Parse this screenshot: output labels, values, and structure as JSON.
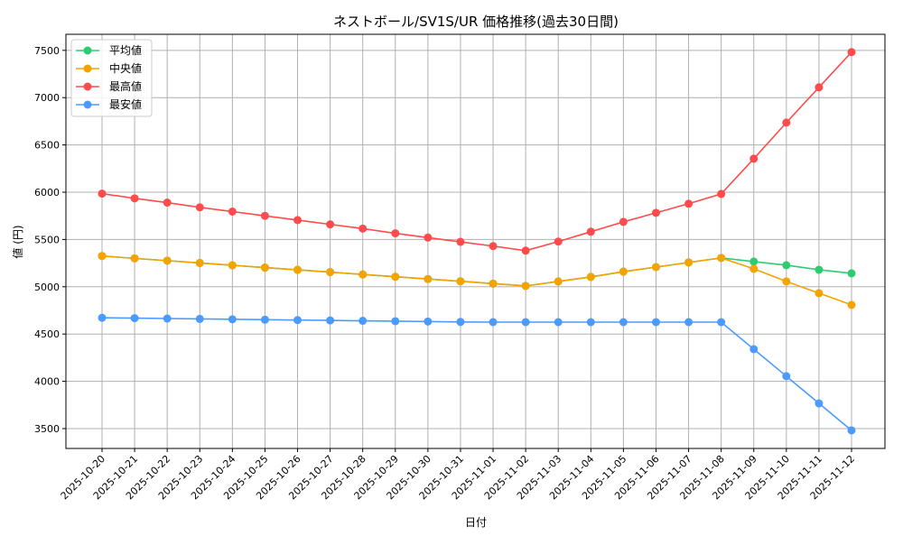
{
  "chart_data": {
    "type": "line",
    "title": "ネストボール/SV1S/UR 価格推移(過去30日間)",
    "xlabel": "日付",
    "ylabel": "値 (円)",
    "ylim": [
      3290,
      7670
    ],
    "yticks": [
      3500,
      4000,
      4500,
      5000,
      5500,
      6000,
      6500,
      7000,
      7500
    ],
    "grid": true,
    "legend_position": "top-left",
    "x": [
      "2025-10-20",
      "2025-10-21",
      "2025-10-22",
      "2025-10-23",
      "2025-10-24",
      "2025-10-25",
      "2025-10-26",
      "2025-10-27",
      "2025-10-28",
      "2025-10-29",
      "2025-10-30",
      "2025-10-31",
      "2025-11-01",
      "2025-11-02",
      "2025-11-03",
      "2025-11-04",
      "2025-11-05",
      "2025-11-06",
      "2025-11-07",
      "2025-11-08",
      "2025-11-09",
      "2025-11-10",
      "2025-11-11",
      "2025-11-12"
    ],
    "series": [
      {
        "name": "平均値",
        "color": "#2ecc71",
        "values": [
          5325,
          5300,
          5276,
          5252,
          5227,
          5203,
          5179,
          5155,
          5130,
          5106,
          5082,
          5058,
          5033,
          5009,
          5056,
          5104,
          5160,
          5208,
          5257,
          5305,
          5266,
          5228,
          5180,
          5142
        ]
      },
      {
        "name": "中央値",
        "color": "#f5a300",
        "values": [
          5325,
          5300,
          5276,
          5252,
          5227,
          5203,
          5179,
          5155,
          5130,
          5106,
          5082,
          5058,
          5033,
          5009,
          5056,
          5104,
          5160,
          5208,
          5257,
          5305,
          5190,
          5056,
          4932,
          4808
        ]
      },
      {
        "name": "最高値",
        "color": "#ff4b4b",
        "values": [
          5985,
          5935,
          5890,
          5840,
          5795,
          5750,
          5705,
          5660,
          5615,
          5565,
          5520,
          5475,
          5430,
          5382,
          5478,
          5582,
          5686,
          5782,
          5878,
          5982,
          6354,
          6736,
          7109,
          7481
        ]
      },
      {
        "name": "最安値",
        "color": "#4b9bff",
        "values": [
          4672,
          4668,
          4664,
          4660,
          4656,
          4652,
          4648,
          4644,
          4640,
          4636,
          4632,
          4628,
          4626,
          4626,
          4626,
          4626,
          4626,
          4626,
          4626,
          4626,
          4340,
          4054,
          3767,
          3481
        ]
      }
    ]
  }
}
